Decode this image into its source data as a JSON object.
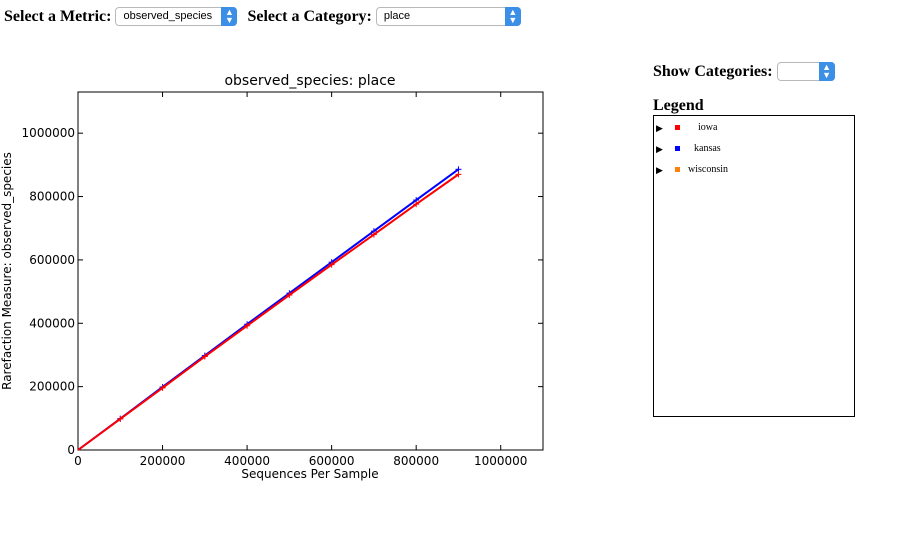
{
  "controls": {
    "metric_label": "Select a Metric:",
    "metric_value": "observed_species",
    "category_label": "Select a Category:",
    "category_value": "place",
    "show_label": "Show Categories:",
    "show_value": ""
  },
  "legend": {
    "title": "Legend",
    "items": [
      {
        "name": "iowa",
        "color": "#ff0000"
      },
      {
        "name": "kansas",
        "color": "#0000ff"
      },
      {
        "name": "wisconsin",
        "color": "#ff7f0e"
      }
    ]
  },
  "chart_data": {
    "type": "line",
    "title": "observed_species: place",
    "xlabel": "Sequences Per Sample",
    "ylabel": "Rarefaction Measure: observed_species",
    "xlim": [
      0,
      1100000
    ],
    "ylim": [
      0,
      1130000
    ],
    "x_ticks": [
      0,
      200000,
      400000,
      600000,
      800000,
      1000000
    ],
    "y_ticks": [
      0,
      200000,
      400000,
      600000,
      800000,
      1000000
    ],
    "grid": false,
    "series": [
      {
        "name": "kansas",
        "color": "#0000ff",
        "x": [
          0,
          100000,
          200000,
          300000,
          400000,
          500000,
          600000,
          700000,
          800000,
          900000
        ],
        "y": [
          0,
          99000,
          199000,
          298000,
          397000,
          495000,
          593000,
          691000,
          789000,
          886000
        ]
      },
      {
        "name": "iowa",
        "color": "#ff0000",
        "x": [
          0,
          100000,
          200000,
          300000,
          400000,
          500000,
          600000,
          700000,
          800000,
          900000
        ],
        "y": [
          0,
          98000,
          196000,
          295000,
          392000,
          489000,
          585000,
          680000,
          776000,
          870000
        ]
      }
    ]
  }
}
